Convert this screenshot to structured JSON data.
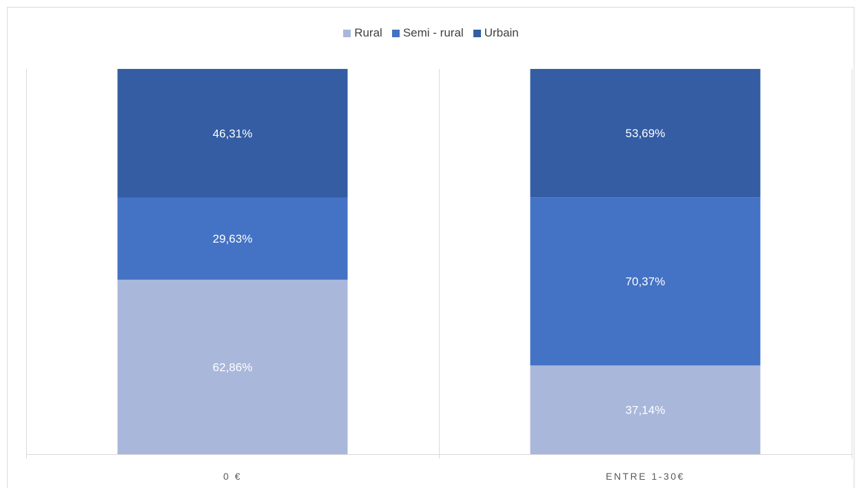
{
  "chart_data": {
    "type": "bar",
    "stacked": true,
    "categories": [
      "0 €",
      "ENTRE 1-30€"
    ],
    "series": [
      {
        "name": "Rural",
        "color": "#a9b7db",
        "values": [
          62.86,
          37.14
        ],
        "labels": [
          "62,86%",
          "37,14%"
        ]
      },
      {
        "name": "Semi - rural",
        "color": "#4472c4",
        "values": [
          29.63,
          70.37
        ],
        "labels": [
          "29,63%",
          "70,37%"
        ]
      },
      {
        "name": "Urbain",
        "color": "#345da3",
        "values": [
          46.31,
          53.69
        ],
        "labels": [
          "46,31%",
          "53,69%"
        ]
      }
    ],
    "legend_position": "top",
    "grid": false
  }
}
